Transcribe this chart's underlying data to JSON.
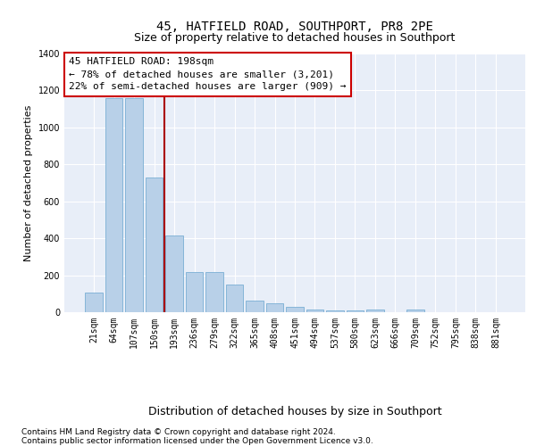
{
  "title": "45, HATFIELD ROAD, SOUTHPORT, PR8 2PE",
  "subtitle": "Size of property relative to detached houses in Southport",
  "xlabel": "Distribution of detached houses by size in Southport",
  "ylabel": "Number of detached properties",
  "categories": [
    "21sqm",
    "64sqm",
    "107sqm",
    "150sqm",
    "193sqm",
    "236sqm",
    "279sqm",
    "322sqm",
    "365sqm",
    "408sqm",
    "451sqm",
    "494sqm",
    "537sqm",
    "580sqm",
    "623sqm",
    "666sqm",
    "709sqm",
    "752sqm",
    "795sqm",
    "838sqm",
    "881sqm"
  ],
  "values": [
    105,
    1160,
    1160,
    730,
    415,
    215,
    215,
    150,
    65,
    50,
    28,
    15,
    12,
    12,
    15,
    0,
    15,
    0,
    0,
    0,
    0
  ],
  "bar_color": "#b8d0e8",
  "bar_edge_color": "#7aafd4",
  "marker_line_color": "#aa0000",
  "annotation_text_line1": "45 HATFIELD ROAD: 198sqm",
  "annotation_text_line2": "← 78% of detached houses are smaller (3,201)",
  "annotation_text_line3": "22% of semi-detached houses are larger (909) →",
  "annotation_box_color": "#cc0000",
  "ylim": [
    0,
    1400
  ],
  "yticks": [
    0,
    200,
    400,
    600,
    800,
    1000,
    1200,
    1400
  ],
  "footer_line1": "Contains HM Land Registry data © Crown copyright and database right 2024.",
  "footer_line2": "Contains public sector information licensed under the Open Government Licence v3.0.",
  "plot_bg_color": "#e8eef8",
  "grid_color": "#ffffff",
  "title_fontsize": 10,
  "subtitle_fontsize": 9,
  "xlabel_fontsize": 9,
  "ylabel_fontsize": 8,
  "tick_fontsize": 7,
  "annotation_fontsize": 8,
  "footer_fontsize": 6.5
}
